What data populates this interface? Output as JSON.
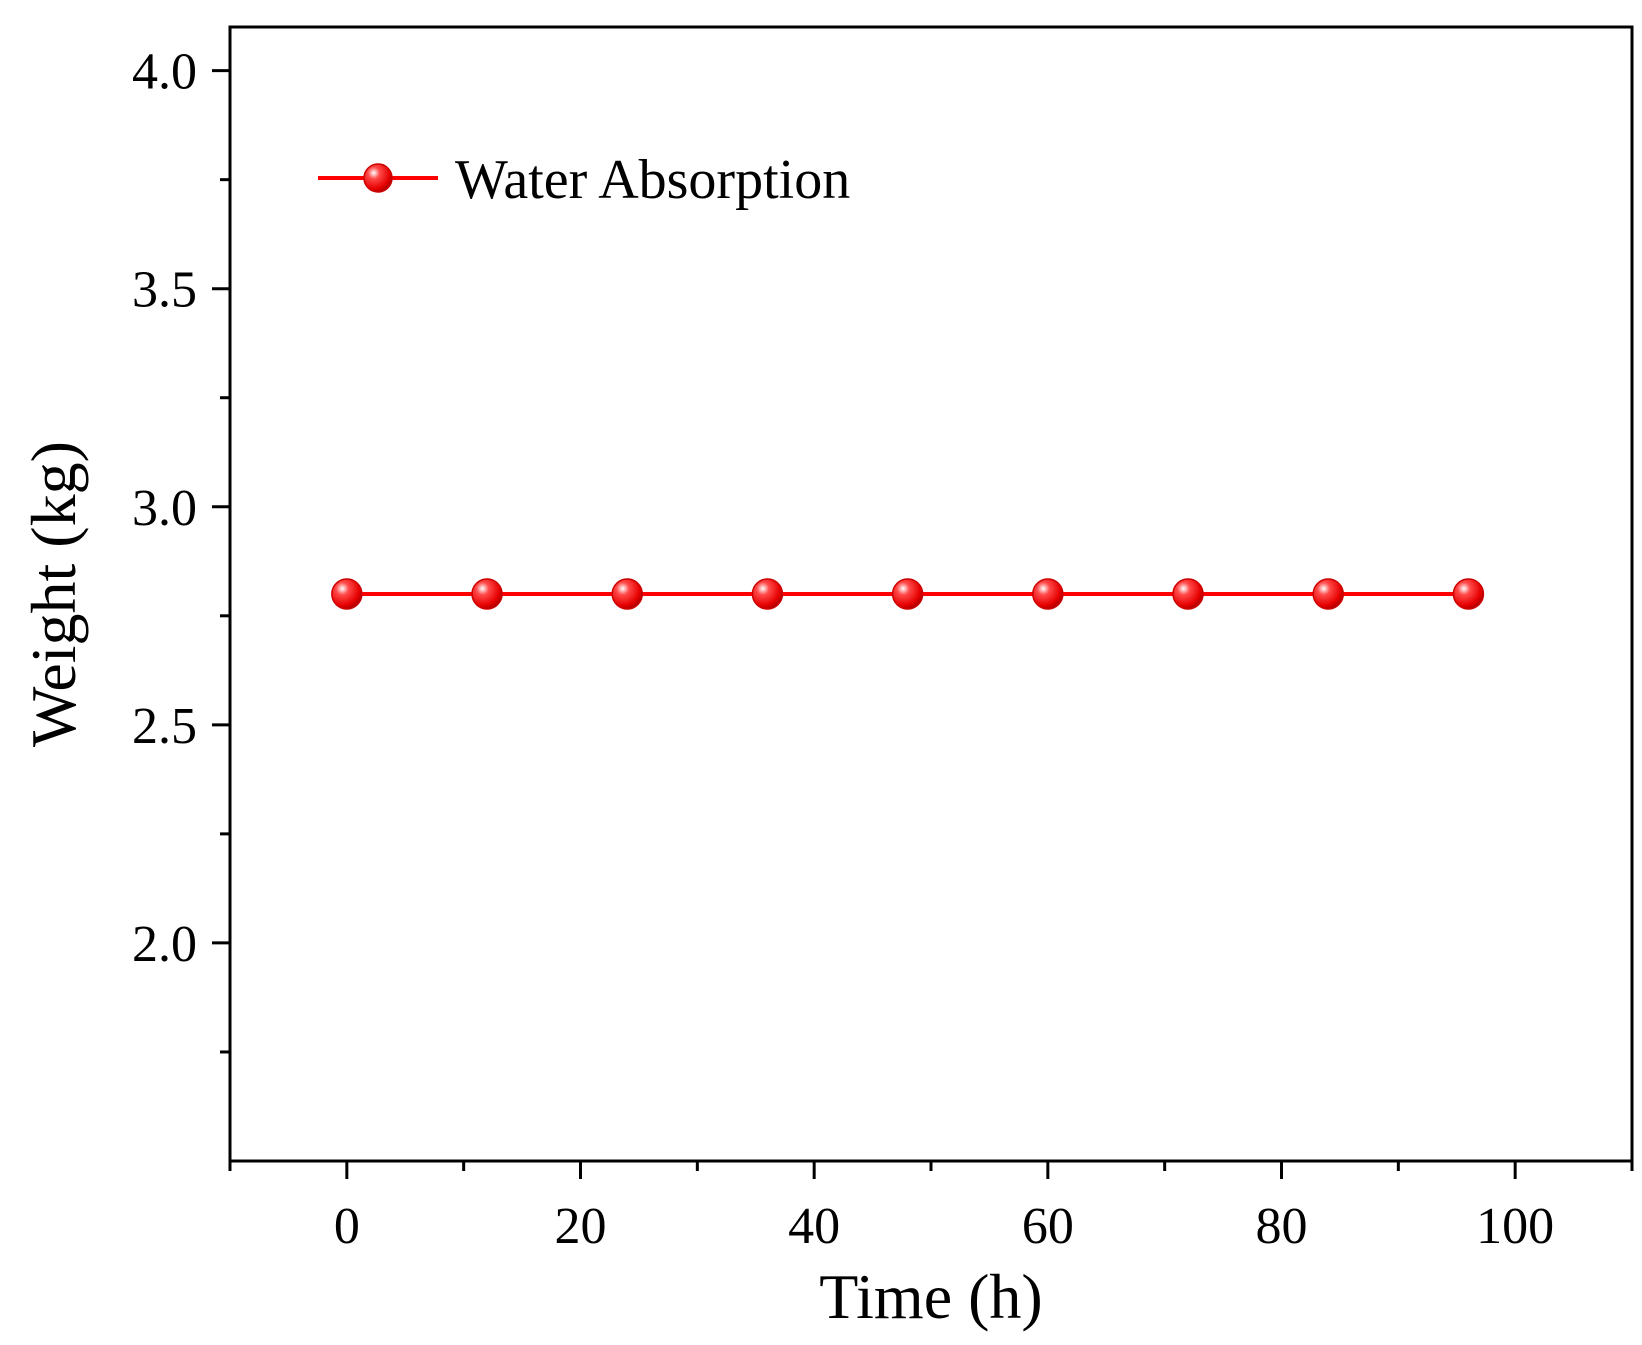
{
  "chart_data": {
    "type": "line",
    "title": "",
    "xlabel": "Time (h)",
    "ylabel": "Weight (kg)",
    "xlim": [
      -10,
      110
    ],
    "ylim": [
      1.5,
      4.1
    ],
    "xticks": [
      0,
      20,
      40,
      60,
      80,
      100
    ],
    "xtick_labels": [
      "0",
      "20",
      "40",
      "60",
      "80",
      "100"
    ],
    "yticks": [
      2.0,
      2.5,
      3.0,
      3.5,
      4.0
    ],
    "ytick_labels": [
      "2.0",
      "2.5",
      "3.0",
      "3.5",
      "4.0"
    ],
    "grid": false,
    "legend_position": "top-left",
    "series": [
      {
        "name": "Water Absorption",
        "color": "#ff0000",
        "x": [
          0,
          12,
          24,
          36,
          48,
          60,
          72,
          84,
          96
        ],
        "y": [
          2.8,
          2.8,
          2.8,
          2.8,
          2.8,
          2.8,
          2.8,
          2.8,
          2.8
        ]
      }
    ]
  }
}
